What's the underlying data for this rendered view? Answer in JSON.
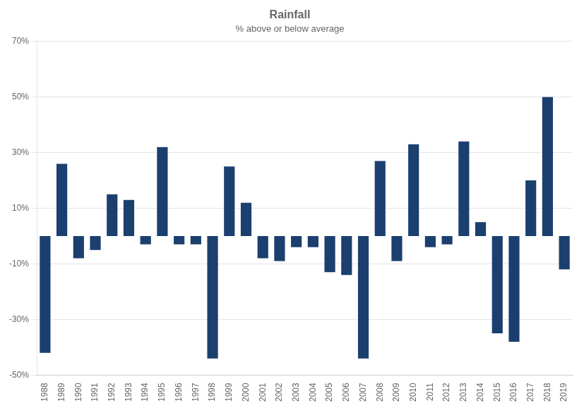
{
  "chart_data": {
    "type": "bar",
    "title": "Rainfall",
    "subtitle": "% above or below average",
    "categories": [
      "1988",
      "1989",
      "1990",
      "1991",
      "1992",
      "1993",
      "1994",
      "1995",
      "1996",
      "1997",
      "1998",
      "1999",
      "2000",
      "2001",
      "2002",
      "2003",
      "2004",
      "2005",
      "2006",
      "2007",
      "2008",
      "2009",
      "2010",
      "2011",
      "2012",
      "2013",
      "2014",
      "2015",
      "2016",
      "2017",
      "2018",
      "2019"
    ],
    "values": [
      -42,
      26,
      -8,
      -5,
      15,
      13,
      -3,
      32,
      -3,
      -3,
      -44,
      25,
      12,
      -8,
      -9,
      -4,
      -4,
      -13,
      -14,
      -44,
      27,
      -9,
      33,
      -4,
      -3,
      34,
      5,
      -35,
      -38,
      20,
      50,
      -12
    ],
    "color": "#1b3f6e",
    "ylim": [
      -50,
      70
    ],
    "yticks": [
      {
        "value": -50,
        "label": "-50%"
      },
      {
        "value": -30,
        "label": "-30%"
      },
      {
        "value": -10,
        "label": "-10%"
      },
      {
        "value": 10,
        "label": "10%"
      },
      {
        "value": 30,
        "label": "30%"
      },
      {
        "value": 50,
        "label": "50%"
      },
      {
        "value": 70,
        "label": "70%"
      }
    ],
    "grid": true
  }
}
